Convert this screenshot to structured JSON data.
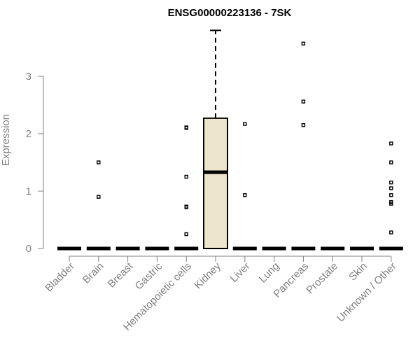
{
  "chart_data": {
    "type": "boxplot",
    "title": "ENSG00000223136 - 7SK",
    "xlabel": "",
    "ylabel": "Expression",
    "ylim": [
      0,
      3.8
    ],
    "yticks": [
      0,
      1,
      2,
      3
    ],
    "categories": [
      "Bladder",
      "Brain",
      "Breast",
      "Gastric",
      "Hematopoietic cells",
      "Kidney",
      "Liver",
      "Lung",
      "Pancreas",
      "Prostate",
      "Skin",
      "Unknown / Other"
    ],
    "boxes": [
      {
        "q1": 0,
        "median": 0,
        "q3": 0,
        "whisker_low": 0,
        "whisker_high": 0,
        "outliers": []
      },
      {
        "q1": 0,
        "median": 0,
        "q3": 0,
        "whisker_low": 0,
        "whisker_high": 0,
        "outliers": [
          0.9,
          1.5
        ]
      },
      {
        "q1": 0,
        "median": 0,
        "q3": 0,
        "whisker_low": 0,
        "whisker_high": 0,
        "outliers": []
      },
      {
        "q1": 0,
        "median": 0,
        "q3": 0,
        "whisker_low": 0,
        "whisker_high": 0,
        "outliers": []
      },
      {
        "q1": 0,
        "median": 0,
        "q3": 0,
        "whisker_low": 0,
        "whisker_high": 0,
        "outliers": [
          0.25,
          0.72,
          0.73,
          1.25,
          2.1,
          2.11
        ]
      },
      {
        "q1": 0,
        "median": 1.33,
        "q3": 2.27,
        "whisker_low": 0,
        "whisker_high": 3.8,
        "outliers": []
      },
      {
        "q1": 0,
        "median": 0,
        "q3": 0,
        "whisker_low": 0,
        "whisker_high": 0,
        "outliers": [
          0.93,
          2.17
        ]
      },
      {
        "q1": 0,
        "median": 0,
        "q3": 0,
        "whisker_low": 0,
        "whisker_high": 0,
        "outliers": []
      },
      {
        "q1": 0,
        "median": 0,
        "q3": 0,
        "whisker_low": 0,
        "whisker_high": 0,
        "outliers": [
          2.15,
          2.56,
          3.57
        ]
      },
      {
        "q1": 0,
        "median": 0,
        "q3": 0,
        "whisker_low": 0,
        "whisker_high": 0,
        "outliers": []
      },
      {
        "q1": 0,
        "median": 0,
        "q3": 0,
        "whisker_low": 0,
        "whisker_high": 0,
        "outliers": []
      },
      {
        "q1": 0,
        "median": 0,
        "q3": 0,
        "whisker_low": 0,
        "whisker_high": 0,
        "outliers": [
          0.28,
          0.78,
          0.81,
          0.93,
          1.05,
          1.15,
          1.5,
          1.83
        ]
      }
    ],
    "box_fill": "#ede6cc",
    "box_stroke": "#000000",
    "grid": false,
    "legend": "none"
  }
}
